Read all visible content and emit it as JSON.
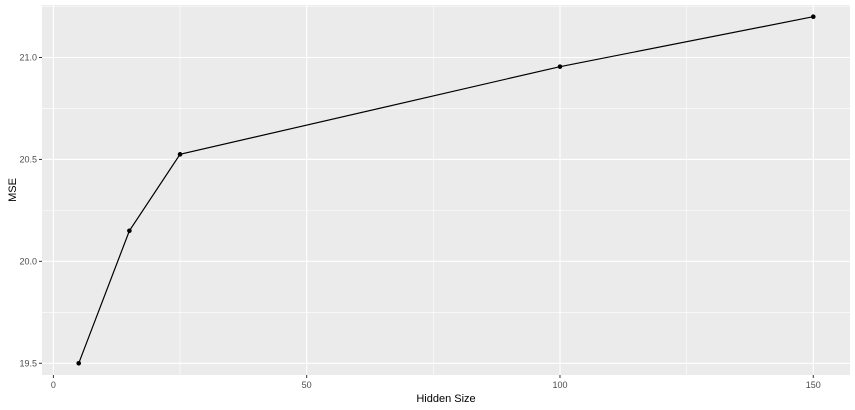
{
  "chart_data": {
    "type": "line",
    "title": "",
    "xlabel": "Hidden Size",
    "ylabel": "MSE",
    "x": [
      5,
      15,
      25,
      100,
      150
    ],
    "y": [
      19.5,
      20.15,
      20.525,
      20.955,
      21.2
    ],
    "xlim": [
      -2.25,
      157.25
    ],
    "ylim": [
      19.4425,
      21.2575
    ],
    "xticks": [
      0,
      50,
      100,
      150
    ],
    "xtick_labels": [
      "0",
      "50",
      "100",
      "150"
    ],
    "yticks": [
      19.5,
      20.0,
      20.5,
      21.0
    ],
    "ytick_labels": [
      "19.5",
      "20.0",
      "20.5",
      "21.0"
    ],
    "grid": true,
    "colors": {
      "panel_background": "#ebebeb",
      "grid": "#ffffff",
      "line": "#000000",
      "points": "#000000"
    }
  }
}
